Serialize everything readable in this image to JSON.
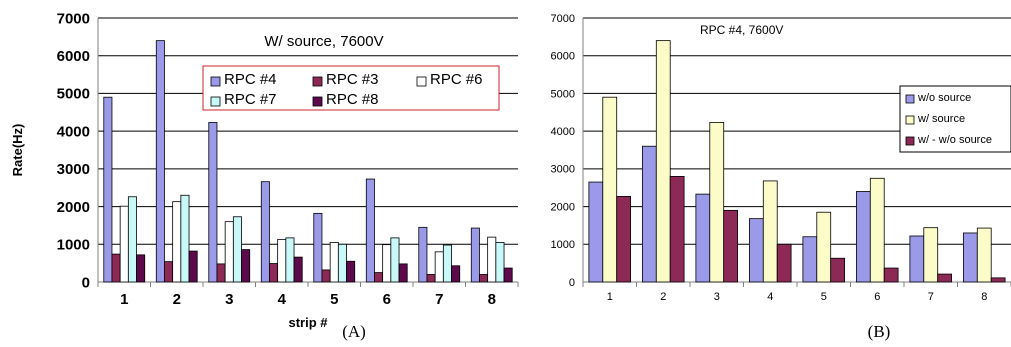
{
  "figure": {
    "caption_a": "(A)",
    "caption_b": "(B)"
  },
  "chart_data": [
    {
      "type": "bar",
      "title": "W/ source, 7600V",
      "xlabel": "strip #",
      "ylabel": "Rate(Hz)",
      "ylim": [
        0,
        7000
      ],
      "yticks": [
        "0",
        "1000",
        "2000",
        "3000",
        "4000",
        "5000",
        "6000",
        "7000"
      ],
      "categories": [
        "1",
        "2",
        "3",
        "4",
        "5",
        "6",
        "7",
        "8"
      ],
      "grid": true,
      "legend_position": "top-right",
      "legend_border_color": "#d0202a",
      "series": [
        {
          "name": "RPC #4",
          "color": "#9a9ae8",
          "values": [
            4900,
            6400,
            4230,
            2660,
            1820,
            2730,
            1450,
            1430
          ]
        },
        {
          "name": "RPC #3",
          "color": "#8c2a55",
          "values": [
            740,
            540,
            480,
            490,
            320,
            250,
            200,
            200
          ]
        },
        {
          "name": "RPC #6",
          "color": "#ffffff",
          "values": [
            2010,
            2130,
            1600,
            1130,
            1050,
            990,
            800,
            1190
          ]
        },
        {
          "name": "RPC #7",
          "color": "#c8f8f8",
          "values": [
            2260,
            2300,
            1730,
            1170,
            1000,
            1170,
            980,
            1050
          ]
        },
        {
          "name": "RPC #8",
          "color": "#5c0a4c",
          "values": [
            720,
            820,
            860,
            660,
            550,
            480,
            430,
            370
          ]
        }
      ]
    },
    {
      "type": "bar",
      "title": "RPC #4, 7600V",
      "xlabel": "",
      "ylabel": "",
      "ylim": [
        0,
        7000
      ],
      "yticks": [
        "0",
        "1000",
        "2000",
        "3000",
        "4000",
        "5000",
        "6000",
        "7000"
      ],
      "categories": [
        "1",
        "2",
        "3",
        "4",
        "5",
        "6",
        "7",
        "8"
      ],
      "grid": true,
      "legend_position": "right",
      "series": [
        {
          "name": "w/o source",
          "color": "#9a9ae8",
          "values": [
            2650,
            3600,
            2330,
            1680,
            1200,
            2400,
            1220,
            1300
          ]
        },
        {
          "name": "w/ source",
          "color": "#fcfcc8",
          "values": [
            4900,
            6400,
            4230,
            2680,
            1850,
            2750,
            1440,
            1430
          ]
        },
        {
          "name": "w/ - w/o source",
          "color": "#8c2a55",
          "values": [
            2270,
            2800,
            1900,
            1000,
            630,
            370,
            210,
            110
          ]
        }
      ]
    }
  ]
}
